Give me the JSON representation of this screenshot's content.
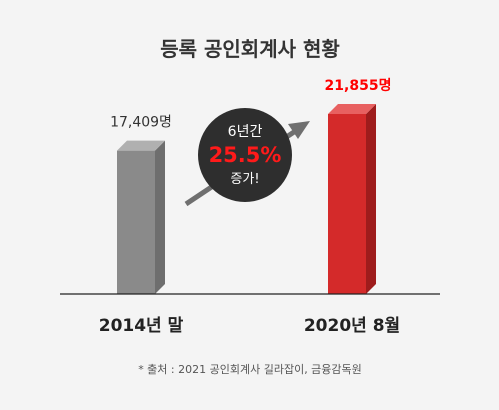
{
  "chart_data": {
    "type": "bar",
    "title": "등록 공인회계사 현황",
    "categories": [
      "2014년 말",
      "2020년 8월"
    ],
    "values": [
      17409,
      21855
    ],
    "value_labels": [
      "17,409명",
      "21,855명"
    ],
    "ylim": [
      0,
      22000
    ],
    "grid": false,
    "colors": [
      "#8a8a8a",
      "#d42a2a"
    ],
    "highlight_color": "#ff0000",
    "annotation": {
      "line1": "6년간",
      "percent": "25.5%",
      "line2": "증가!"
    },
    "source": "* 출처 : 2021 공인회계사 길라잡이, 금융감독원"
  }
}
